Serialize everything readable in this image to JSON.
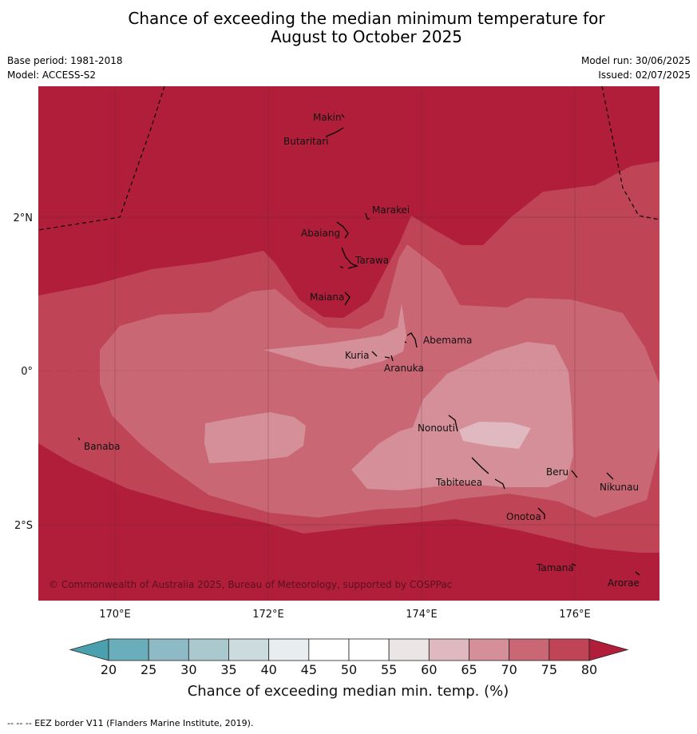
{
  "title_line1": "Chance of exceeding the median minimum temperature for",
  "title_line2": "August to October 2025",
  "meta": {
    "base_period": "Base period: 1981-2018",
    "model": "Model: ACCESS-S2",
    "model_run": "Model run: 30/06/2025",
    "issued": "Issued: 02/07/2025"
  },
  "map": {
    "lon_labels": [
      "170°E",
      "172°E",
      "174°E",
      "176°E"
    ],
    "lat_labels": [
      "2°N",
      "0°",
      "2°S"
    ],
    "places": [
      "Makin",
      "Butaritari",
      "Marakei",
      "Abaiang",
      "Tarawa",
      "Maiana",
      "Abemama",
      "Kuria",
      "Aranuka",
      "Banaba",
      "Nonouti",
      "Tabiteuea",
      "Beru",
      "Nikunau",
      "Onotoa",
      "Tamana",
      "Arorae"
    ],
    "copyright": "© Commonwealth of Australia 2025, Bureau of Meteorology, supported by COSPPac"
  },
  "colorbar": {
    "ticks": [
      "20",
      "25",
      "30",
      "35",
      "40",
      "45",
      "50",
      "55",
      "60",
      "65",
      "70",
      "75",
      "80"
    ],
    "title": "Chance of exceeding median min. temp. (%)",
    "colors": {
      "under": "#4aa1ad",
      "b20": "#6aaebc",
      "b25": "#8dbac5",
      "b30": "#a9c9cf",
      "b35": "#ccdbde",
      "b40": "#e8eef0",
      "b45": "#ffffff",
      "b50": "#ffffff",
      "b55": "#ebe5e6",
      "b60": "#e0b8bf",
      "b65": "#d48f99",
      "b70": "#c96775",
      "b75": "#bf4556",
      "over": "#b01e3a"
    }
  },
  "footnote": "-- -- -- EEZ border V11 (Flanders Marine Institute, 2019)."
}
